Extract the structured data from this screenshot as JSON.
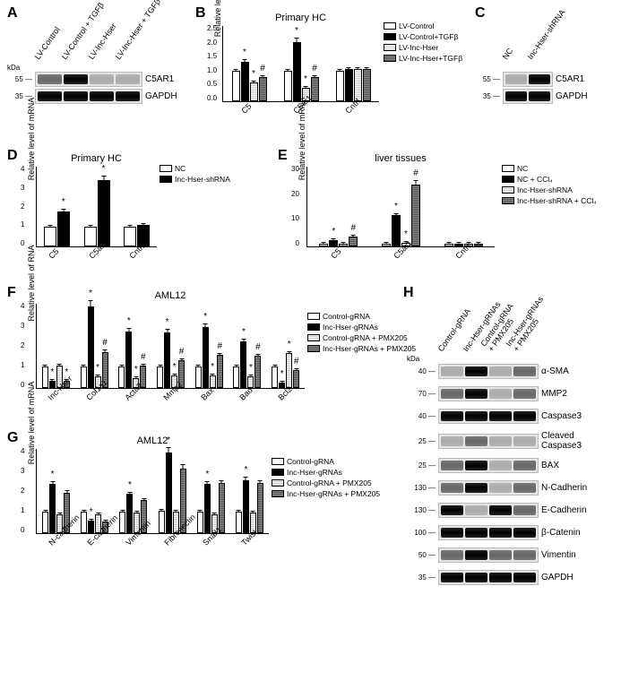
{
  "panels": {
    "A": {
      "kda_label": "kDa",
      "bands": [
        {
          "label": "C5AR1",
          "kda_top": "55 —",
          "intensities": [
            "med",
            "band",
            "light",
            "light"
          ]
        },
        {
          "label": "GAPDH",
          "kda_top": "35 —",
          "intensities": [
            "band",
            "band",
            "band",
            "band"
          ]
        }
      ],
      "lanes": [
        "LV-Control",
        "LV-Control + TGFβ",
        "LV-Inc-Hser",
        "LV-Inc-Hser + TGFβ"
      ]
    },
    "B": {
      "title": "Primary HC",
      "ylabel": "Relative level of mRNA",
      "ymax": 2.5,
      "yticks": [
        "2.5",
        "2.0",
        "1.5",
        "1.0",
        "0.5",
        "0.0"
      ],
      "legend": [
        "LV-Control",
        "LV-Control+TGFβ",
        "LV-Inc-Hser",
        "LV-Inc-Hser+TGFβ"
      ],
      "groups": [
        {
          "name": "C5",
          "bars": [
            {
              "v": 1.0,
              "p": "pat-white",
              "s": ""
            },
            {
              "v": 1.3,
              "p": "pat-black",
              "s": "*"
            },
            {
              "v": 0.62,
              "p": "pat-light",
              "s": "*"
            },
            {
              "v": 0.8,
              "p": "pat-dark",
              "s": "#"
            }
          ]
        },
        {
          "name": "C5ar1",
          "bars": [
            {
              "v": 1.0,
              "p": "pat-white",
              "s": ""
            },
            {
              "v": 1.95,
              "p": "pat-black",
              "s": "*"
            },
            {
              "v": 0.45,
              "p": "pat-light",
              "s": "*"
            },
            {
              "v": 0.8,
              "p": "pat-dark",
              "s": "#"
            }
          ]
        },
        {
          "name": "Cntrl",
          "bars": [
            {
              "v": 1.0,
              "p": "pat-white",
              "s": ""
            },
            {
              "v": 1.05,
              "p": "pat-black",
              "s": ""
            },
            {
              "v": 1.05,
              "p": "pat-light",
              "s": ""
            },
            {
              "v": 1.05,
              "p": "pat-dark",
              "s": ""
            }
          ]
        }
      ]
    },
    "C": {
      "lanes": [
        "NC",
        "Inc-Hser-shRNA"
      ],
      "bands": [
        {
          "label": "C5AR1",
          "kda_top": "55 —",
          "intensities": [
            "light",
            "band"
          ]
        },
        {
          "label": "GAPDH",
          "kda_top": "35 —",
          "intensities": [
            "band",
            "band"
          ]
        }
      ]
    },
    "D": {
      "title": "Primary HC",
      "ylabel": "Relative level of mRNA",
      "ymax": 4,
      "yticks": [
        "4",
        "3",
        "2",
        "1",
        "0"
      ],
      "legend": [
        "NC",
        "Inc-Hser-shRNA"
      ],
      "groups": [
        {
          "name": "C5",
          "bars": [
            {
              "v": 1.0,
              "p": "pat-white",
              "s": ""
            },
            {
              "v": 1.75,
              "p": "pat-black",
              "s": "*"
            }
          ]
        },
        {
          "name": "C5ar1",
          "bars": [
            {
              "v": 1.0,
              "p": "pat-white",
              "s": ""
            },
            {
              "v": 3.3,
              "p": "pat-black",
              "s": "*"
            }
          ]
        },
        {
          "name": "Cntrl",
          "bars": [
            {
              "v": 1.0,
              "p": "pat-white",
              "s": ""
            },
            {
              "v": 1.05,
              "p": "pat-black",
              "s": ""
            }
          ]
        }
      ]
    },
    "E": {
      "title": "liver tissues",
      "ylabel": "Relative level of mRNA",
      "ymax": 30,
      "yticks": [
        "30",
        "20",
        "10",
        "0"
      ],
      "legend": [
        "NC",
        "NC + CCl₄",
        "Inc-Hser-shRNA",
        "Inc-Hser-shRNA + CCl₄"
      ],
      "groups": [
        {
          "name": "C5",
          "bars": [
            {
              "v": 1.0,
              "p": "pat-white",
              "s": ""
            },
            {
              "v": 2.4,
              "p": "pat-black",
              "s": "*"
            },
            {
              "v": 1.1,
              "p": "pat-light",
              "s": ""
            },
            {
              "v": 3.6,
              "p": "pat-dark",
              "s": "#"
            }
          ]
        },
        {
          "name": "C5ar1",
          "bars": [
            {
              "v": 1.0,
              "p": "pat-white",
              "s": ""
            },
            {
              "v": 11.8,
              "p": "pat-black",
              "s": "*"
            },
            {
              "v": 1.2,
              "p": "pat-light",
              "s": "*"
            },
            {
              "v": 23,
              "p": "pat-dark",
              "s": "#"
            }
          ]
        },
        {
          "name": "Cntrl",
          "bars": [
            {
              "v": 1.0,
              "p": "pat-white",
              "s": ""
            },
            {
              "v": 1.1,
              "p": "pat-black",
              "s": ""
            },
            {
              "v": 1.1,
              "p": "pat-light",
              "s": ""
            },
            {
              "v": 1.1,
              "p": "pat-dark",
              "s": ""
            }
          ]
        }
      ]
    },
    "F": {
      "title": "AML12",
      "ylabel": "Relative level of RNA",
      "ymax": 4,
      "yticks": [
        "4",
        "3",
        "2",
        "1",
        "0"
      ],
      "legend": [
        "Control-gRNA",
        "Inc-Hser-gRNAs",
        "Control-gRNA + PMX205",
        "Inc-Hser-gRNAs + PMX205"
      ],
      "groups": [
        {
          "name": "Inc-Hser",
          "bars": [
            {
              "v": 1.0,
              "p": "pat-white",
              "s": ""
            },
            {
              "v": 0.35,
              "p": "pat-black",
              "s": "*"
            },
            {
              "v": 1.05,
              "p": "pat-light",
              "s": ""
            },
            {
              "v": 0.35,
              "p": "pat-dark",
              "s": "*"
            }
          ]
        },
        {
          "name": "Col1a1",
          "bars": [
            {
              "v": 1.0,
              "p": "pat-white",
              "s": ""
            },
            {
              "v": 3.85,
              "p": "pat-black",
              "s": "*"
            },
            {
              "v": 0.55,
              "p": "pat-light",
              "s": "*"
            },
            {
              "v": 1.7,
              "p": "pat-dark",
              "s": "#"
            }
          ]
        },
        {
          "name": "Acta2",
          "bars": [
            {
              "v": 1.0,
              "p": "pat-white",
              "s": ""
            },
            {
              "v": 2.65,
              "p": "pat-black",
              "s": "*"
            },
            {
              "v": 0.45,
              "p": "pat-light",
              "s": "*"
            },
            {
              "v": 1.05,
              "p": "pat-dark",
              "s": "#"
            }
          ]
        },
        {
          "name": "Mmp2",
          "bars": [
            {
              "v": 1.0,
              "p": "pat-white",
              "s": ""
            },
            {
              "v": 2.6,
              "p": "pat-black",
              "s": "*"
            },
            {
              "v": 0.6,
              "p": "pat-light",
              "s": "*"
            },
            {
              "v": 1.3,
              "p": "pat-dark",
              "s": "#"
            }
          ]
        },
        {
          "name": "Bax",
          "bars": [
            {
              "v": 1.0,
              "p": "pat-white",
              "s": ""
            },
            {
              "v": 2.85,
              "p": "pat-black",
              "s": "*"
            },
            {
              "v": 0.6,
              "p": "pat-light",
              "s": "*"
            },
            {
              "v": 1.55,
              "p": "pat-dark",
              "s": "#"
            }
          ]
        },
        {
          "name": "Bad",
          "bars": [
            {
              "v": 1.0,
              "p": "pat-white",
              "s": ""
            },
            {
              "v": 2.2,
              "p": "pat-black",
              "s": "*"
            },
            {
              "v": 0.55,
              "p": "pat-light",
              "s": "*"
            },
            {
              "v": 1.5,
              "p": "pat-dark",
              "s": "#"
            }
          ]
        },
        {
          "name": "Bcl2",
          "bars": [
            {
              "v": 1.0,
              "p": "pat-white",
              "s": ""
            },
            {
              "v": 0.25,
              "p": "pat-black",
              "s": "*"
            },
            {
              "v": 1.65,
              "p": "pat-light",
              "s": "*"
            },
            {
              "v": 0.85,
              "p": "pat-dark",
              "s": "#"
            }
          ]
        }
      ]
    },
    "G": {
      "title": "AML12",
      "ylabel": "Relative level of mRNA",
      "ymax": 4,
      "yticks": [
        "4",
        "3",
        "2",
        "1",
        "0"
      ],
      "legend": [
        "Control-gRNA",
        "Inc-Hser-gRNAs",
        "Control-gRNA + PMX205",
        "Inc-Hser-gRNAs + PMX205"
      ],
      "groups": [
        {
          "name": "N-cadherin",
          "bars": [
            {
              "v": 1.0,
              "p": "pat-white",
              "s": ""
            },
            {
              "v": 2.3,
              "p": "pat-black",
              "s": "*"
            },
            {
              "v": 0.9,
              "p": "pat-light",
              "s": ""
            },
            {
              "v": 1.9,
              "p": "pat-dark",
              "s": ""
            }
          ]
        },
        {
          "name": "E-cadherin",
          "bars": [
            {
              "v": 1.0,
              "p": "pat-white",
              "s": ""
            },
            {
              "v": 0.6,
              "p": "pat-black",
              "s": "*"
            },
            {
              "v": 0.9,
              "p": "pat-light",
              "s": ""
            },
            {
              "v": 0.55,
              "p": "pat-dark",
              "s": ""
            }
          ]
        },
        {
          "name": "Vimentin",
          "bars": [
            {
              "v": 1.0,
              "p": "pat-white",
              "s": ""
            },
            {
              "v": 1.85,
              "p": "pat-black",
              "s": "*"
            },
            {
              "v": 0.95,
              "p": "pat-light",
              "s": ""
            },
            {
              "v": 1.55,
              "p": "pat-dark",
              "s": ""
            }
          ]
        },
        {
          "name": "Fibronectin",
          "bars": [
            {
              "v": 1.05,
              "p": "pat-white",
              "s": ""
            },
            {
              "v": 3.8,
              "p": "pat-black",
              "s": "*"
            },
            {
              "v": 1.0,
              "p": "pat-light",
              "s": ""
            },
            {
              "v": 3.05,
              "p": "pat-dark",
              "s": ""
            }
          ]
        },
        {
          "name": "Snail1",
          "bars": [
            {
              "v": 1.0,
              "p": "pat-white",
              "s": ""
            },
            {
              "v": 2.3,
              "p": "pat-black",
              "s": "*"
            },
            {
              "v": 0.9,
              "p": "pat-light",
              "s": ""
            },
            {
              "v": 2.35,
              "p": "pat-dark",
              "s": ""
            }
          ]
        },
        {
          "name": "Twist",
          "bars": [
            {
              "v": 1.0,
              "p": "pat-white",
              "s": ""
            },
            {
              "v": 2.5,
              "p": "pat-black",
              "s": "*"
            },
            {
              "v": 0.95,
              "p": "pat-light",
              "s": ""
            },
            {
              "v": 2.35,
              "p": "pat-dark",
              "s": ""
            }
          ]
        }
      ]
    },
    "H": {
      "lanes": [
        "Control-gRNA",
        "Inc-Hser-gRNAs",
        "Control-gRNA\n+ PMX205",
        "Inc-Hser-gRNAs\n+ PMX205"
      ],
      "kda_label": "kDa",
      "bands": [
        {
          "label": "α-SMA",
          "kda": "40 —",
          "i": [
            "light",
            "band",
            "light",
            "med"
          ]
        },
        {
          "label": "MMP2",
          "kda": "70 —",
          "i": [
            "med",
            "band",
            "light",
            "med"
          ]
        },
        {
          "label": "Caspase3",
          "kda": "40 —",
          "i": [
            "band",
            "band",
            "band",
            "band"
          ]
        },
        {
          "label": "Cleaved\nCaspase3",
          "kda": "25 —",
          "i": [
            "light",
            "med",
            "light",
            "light"
          ]
        },
        {
          "label": "BAX",
          "kda": "25 —",
          "i": [
            "med",
            "band",
            "light",
            "med"
          ]
        },
        {
          "label": "N-Cadherin",
          "kda": "130 —",
          "i": [
            "med",
            "band",
            "light",
            "med"
          ]
        },
        {
          "label": "E-Cadherin",
          "kda": "130 —",
          "i": [
            "band",
            "light",
            "band",
            "med"
          ]
        },
        {
          "label": "β-Catenin",
          "kda": "100 —",
          "i": [
            "band",
            "band",
            "band",
            "band"
          ]
        },
        {
          "label": "Vimentin",
          "kda": "50 —",
          "i": [
            "med",
            "band",
            "med",
            "med"
          ]
        },
        {
          "label": "GAPDH",
          "kda": "35 —",
          "i": [
            "band",
            "band",
            "band",
            "band"
          ]
        }
      ]
    }
  }
}
